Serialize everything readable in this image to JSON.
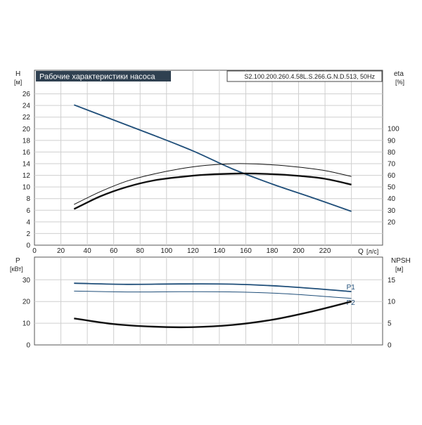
{
  "chart_data": [
    {
      "type": "line",
      "title": "Рабочие характеристики насоса",
      "model": "S2.100.200.260.4.58L.S.266.G.N.D.513, 50Hz",
      "xlabel": "Q",
      "xunit": "[л/с]",
      "ylabel": "H",
      "yunit": "[м]",
      "y2label": "eta",
      "y2unit": "[%]",
      "xlim": [
        0,
        250
      ],
      "ylim": [
        0,
        28
      ],
      "y2lim": [
        0,
        100
      ],
      "xticks": [
        "0",
        "20",
        "40",
        "60",
        "80",
        "100",
        "120",
        "140",
        "160",
        "180",
        "200",
        "220"
      ],
      "yticks": [
        "0",
        "2",
        "4",
        "6",
        "8",
        "10",
        "12",
        "14",
        "16",
        "18",
        "20",
        "22",
        "24",
        "26"
      ],
      "y2ticks": [
        "20",
        "30",
        "40",
        "50",
        "60",
        "70",
        "80",
        "90",
        "100"
      ],
      "grid": true,
      "colors": {
        "head": "#1f4e79",
        "eta_total": "#111111",
        "eta_hydraulic": "#111111"
      },
      "series": [
        {
          "id": "head",
          "axis": "left",
          "x": [
            30,
            60,
            90,
            120,
            150,
            180,
            210,
            240
          ],
          "y": [
            24.1,
            21.5,
            18.9,
            16.2,
            13.1,
            10.5,
            8.2,
            5.8
          ]
        },
        {
          "id": "eta_hydraulic",
          "axis": "right",
          "x": [
            30,
            50,
            70,
            90,
            110,
            130,
            155,
            180,
            200,
            220,
            240
          ],
          "y": [
            35,
            46,
            55,
            61,
            65.5,
            68.5,
            70,
            69,
            67,
            64,
            59
          ]
        },
        {
          "id": "eta_total",
          "axis": "right",
          "x": [
            30,
            50,
            70,
            90,
            110,
            130,
            155,
            180,
            200,
            220,
            240
          ],
          "y": [
            31,
            42,
            50,
            55.5,
            58.5,
            60.5,
            61.5,
            61,
            59.5,
            57,
            52
          ]
        }
      ]
    },
    {
      "type": "line",
      "ylabel": "P",
      "yunit": "[кВт]",
      "y2label": "NPSH",
      "y2unit": "[м]",
      "xlim": [
        0,
        250
      ],
      "ylim": [
        0,
        35
      ],
      "y2lim": [
        0,
        17.5
      ],
      "yticks": [
        "0",
        "10",
        "20",
        "30"
      ],
      "y2ticks": [
        "0",
        "5",
        "10",
        "15"
      ],
      "grid": true,
      "colors": {
        "P1": "#1f4e79",
        "P2": "#1f4e79",
        "npsh": "#111111"
      },
      "series": [
        {
          "id": "P1",
          "name": "P1",
          "axis": "left",
          "x": [
            30,
            70,
            110,
            150,
            190,
            240
          ],
          "y": [
            28.4,
            27.9,
            28.1,
            28.0,
            26.9,
            24.6
          ]
        },
        {
          "id": "P2",
          "name": "P2",
          "axis": "left",
          "x": [
            30,
            70,
            110,
            150,
            190,
            240
          ],
          "y": [
            24.8,
            24.4,
            24.5,
            24.4,
            23.6,
            21.4
          ]
        },
        {
          "id": "npsh",
          "axis": "right",
          "x": [
            30,
            60,
            90,
            120,
            150,
            180,
            210,
            240
          ],
          "y": [
            6.1,
            4.8,
            4.2,
            4.1,
            4.6,
            5.8,
            7.7,
            10.0
          ]
        }
      ]
    }
  ]
}
